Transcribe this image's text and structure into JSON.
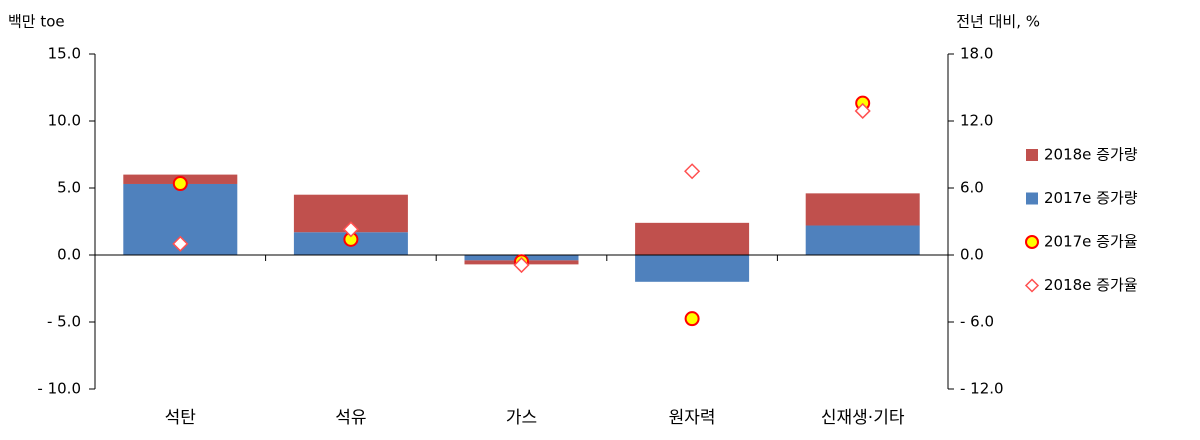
{
  "chart_data": {
    "type": "bar",
    "y_label": "백만 toe",
    "y2_label": "전년 대비, %",
    "categories": [
      "석탄",
      "석유",
      "가스",
      "원자력",
      "신재생·기타"
    ],
    "series": [
      {
        "name": "2018e 증가량",
        "type": "bar",
        "color": "#c0504d",
        "values": [
          0.7,
          2.8,
          -0.3,
          2.4,
          2.4
        ]
      },
      {
        "name": "2017e 증가량",
        "type": "bar",
        "color": "#4f81bd",
        "values": [
          5.3,
          1.7,
          -0.4,
          -2.0,
          2.2
        ]
      },
      {
        "name": "2017e 증가율",
        "type": "scatter",
        "marker": "circle",
        "color": "#ff0000",
        "fill": "#ffff00",
        "axis": "y2",
        "values": [
          6.4,
          1.4,
          -0.6,
          -5.7,
          13.6
        ]
      },
      {
        "name": "2018e 증가율",
        "type": "scatter",
        "marker": "diamond",
        "color": "#ff5050",
        "fill": "#ffffff",
        "axis": "y2",
        "values": [
          1.0,
          2.3,
          -0.9,
          7.5,
          12.9
        ]
      }
    ],
    "ylim": [
      -10,
      15
    ],
    "yticks": [
      {
        "value": -10,
        "label": "- 10.0"
      },
      {
        "value": -5,
        "label": "- 5.0"
      },
      {
        "value": 0,
        "label": "0.0"
      },
      {
        "value": 5,
        "label": "5.0"
      },
      {
        "value": 10,
        "label": "10.0"
      },
      {
        "value": 15,
        "label": "15.0"
      }
    ],
    "y2lim": [
      -12,
      18
    ],
    "y2ticks": [
      {
        "value": -12,
        "label": "- 12.0"
      },
      {
        "value": -6,
        "label": "- 6.0"
      },
      {
        "value": 0,
        "label": "0.0"
      },
      {
        "value": 6,
        "label": "6.0"
      },
      {
        "value": 12,
        "label": "12.0"
      },
      {
        "value": 18,
        "label": "18.0"
      }
    ],
    "legend": "right"
  }
}
